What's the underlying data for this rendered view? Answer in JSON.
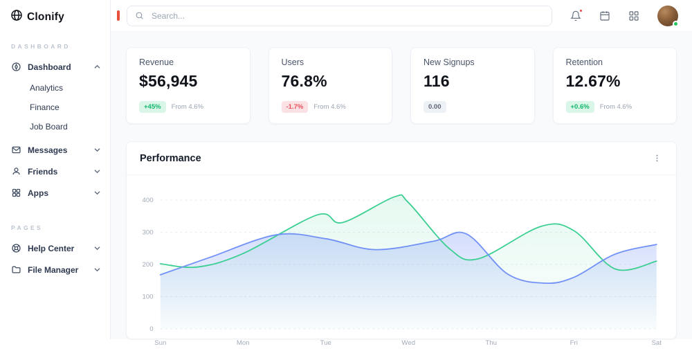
{
  "brand": {
    "name": "Clonify"
  },
  "sidebar": {
    "sections": {
      "main": "Dashboard",
      "pages": "Pages"
    },
    "items": [
      {
        "label": "Dashboard",
        "icon": "compass-icon",
        "expanded": true,
        "children": [
          "Analytics",
          "Finance",
          "Job Board"
        ]
      },
      {
        "label": "Messages",
        "icon": "mail-icon"
      },
      {
        "label": "Friends",
        "icon": "user-icon"
      },
      {
        "label": "Apps",
        "icon": "grid-icon"
      }
    ],
    "page_items": [
      {
        "label": "Help Center",
        "icon": "lifebuoy-icon"
      },
      {
        "label": "File Manager",
        "icon": "folder-icon"
      }
    ]
  },
  "topbar": {
    "search_placeholder": "Search..."
  },
  "stats": [
    {
      "title": "Revenue",
      "value": "$56,945",
      "badge": "+45%",
      "badge_type": "positive",
      "note": "From 4.6%"
    },
    {
      "title": "Users",
      "value": "76.8%",
      "badge": "-1.7%",
      "badge_type": "negative",
      "note": "From 4.6%"
    },
    {
      "title": "New Signups",
      "value": "116",
      "badge": "0.00",
      "badge_type": "neutral",
      "note": ""
    },
    {
      "title": "Retention",
      "value": "12.67%",
      "badge": "+0.6%",
      "badge_type": "positive",
      "note": "From 4.6%"
    }
  ],
  "panel": {
    "title": "Performance"
  },
  "colors": {
    "positive": "#12b76a",
    "negative": "#e8505b",
    "accent_red": "#e8503a",
    "status_online": "#22c55e",
    "series_green": "#3bcf92",
    "series_blue": "#7191f6"
  },
  "chart_data": {
    "type": "area",
    "title": "Performance",
    "x_labels": [
      "Sun",
      "Mon",
      "Tue",
      "Wed",
      "Thu",
      "Fri",
      "Sat"
    ],
    "y_ticks": [
      0,
      100,
      200,
      300,
      400
    ],
    "ylim": [
      0,
      430
    ],
    "grid": "horizontal-dashed",
    "legend": "none",
    "series": [
      {
        "name": "series-green",
        "color": "#3bcf92",
        "fill_opacity": 0.13,
        "points": [
          [
            0,
            202
          ],
          [
            0.45,
            192
          ],
          [
            1,
            234
          ],
          [
            1.9,
            354
          ],
          [
            2.2,
            330
          ],
          [
            2.83,
            410
          ],
          [
            3,
            392
          ],
          [
            3.5,
            248
          ],
          [
            3.85,
            218
          ],
          [
            4.6,
            318
          ],
          [
            5,
            305
          ],
          [
            5.5,
            186
          ],
          [
            6,
            210
          ]
        ]
      },
      {
        "name": "series-blue",
        "color": "#7191f6",
        "fill_opacity": 0.3,
        "points": [
          [
            0,
            168
          ],
          [
            0.6,
            222
          ],
          [
            1.4,
            292
          ],
          [
            2,
            280
          ],
          [
            2.6,
            246
          ],
          [
            3.3,
            272
          ],
          [
            3.7,
            295
          ],
          [
            4.2,
            170
          ],
          [
            4.65,
            142
          ],
          [
            5,
            160
          ],
          [
            5.5,
            232
          ],
          [
            6,
            262
          ]
        ]
      }
    ]
  }
}
